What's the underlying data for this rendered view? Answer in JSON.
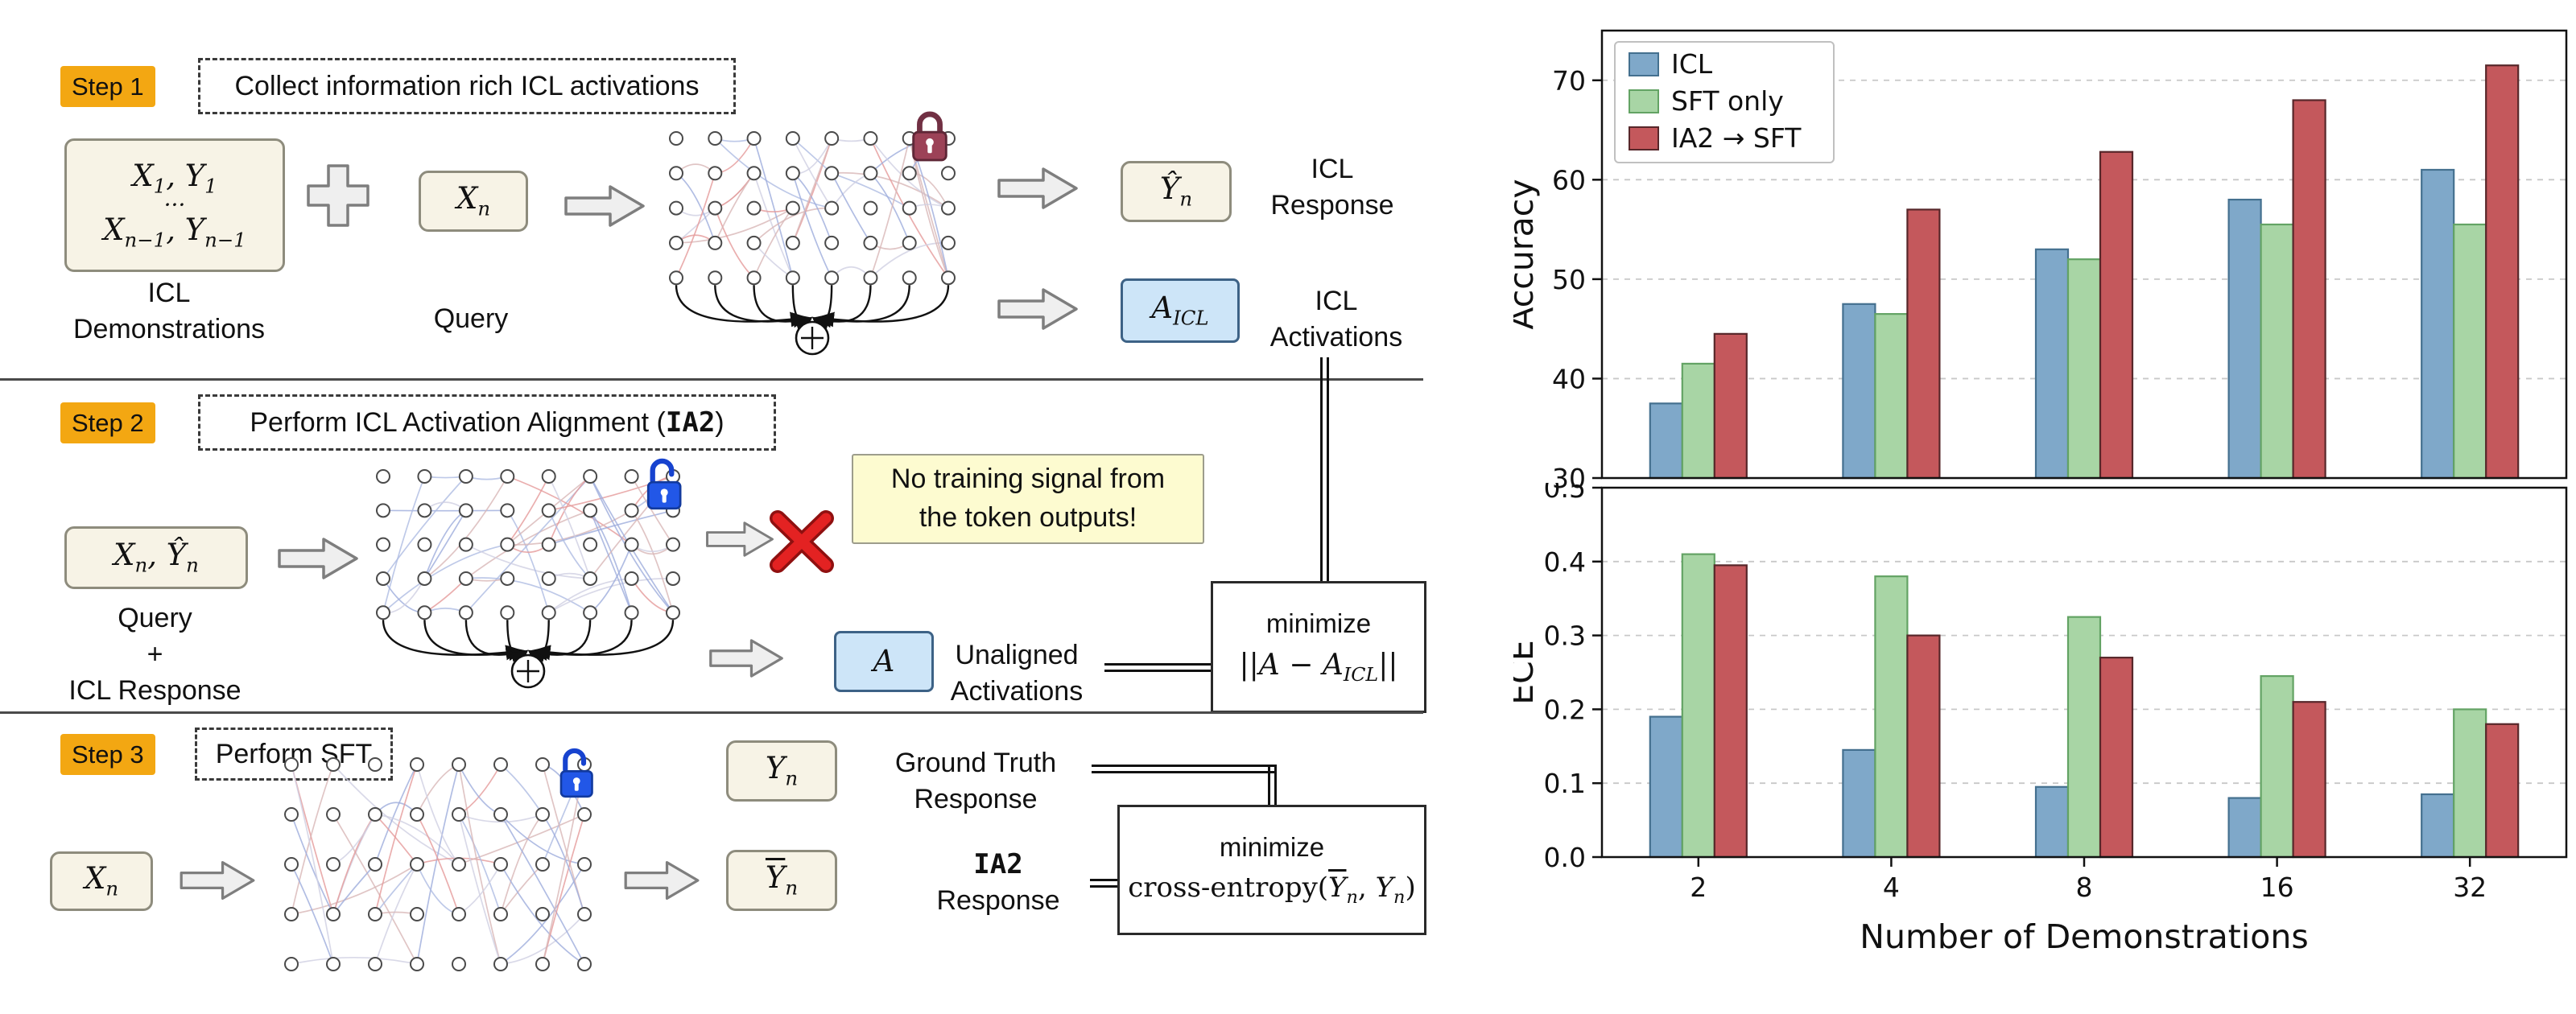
{
  "diagram": {
    "step1": {
      "badge": "Step 1",
      "title": "Collect information rich ICL activations",
      "demos": {
        "line1": [
          [
            "t",
            "X"
          ],
          [
            "s",
            "1"
          ],
          [
            "t",
            ", Y"
          ],
          [
            "s",
            "1"
          ]
        ],
        "dots": "···",
        "line2": [
          [
            "t",
            "X"
          ],
          [
            "s",
            "n−1"
          ],
          [
            "t",
            ", Y"
          ],
          [
            "s",
            "n−1"
          ]
        ],
        "label_line1": "ICL",
        "label_line2": "Demonstrations"
      },
      "query": {
        "value": [
          [
            "t",
            "X"
          ],
          [
            "s",
            "n"
          ]
        ],
        "label": "Query"
      },
      "response": {
        "value": [
          [
            "t",
            "Ŷ"
          ],
          [
            "s",
            "n"
          ]
        ],
        "label_line1": "ICL",
        "label_line2": "Response"
      },
      "activations": {
        "value": [
          [
            "t",
            "A"
          ],
          [
            "s",
            "ICL"
          ]
        ],
        "label_line1": "ICL",
        "label_line2": "Activations"
      }
    },
    "step2": {
      "badge": "Step 2",
      "title_prefix": "Perform ICL Activation Alignment (",
      "title_code": "IA2",
      "title_suffix": ")",
      "input": {
        "value": [
          [
            "t",
            "X"
          ],
          [
            "s",
            "n"
          ],
          [
            "t",
            ", Ŷ"
          ],
          [
            "s",
            "n"
          ]
        ],
        "label_line1": "Query",
        "label_line2": "+",
        "label_line3": "ICL Response"
      },
      "note_line1": "No training signal from",
      "note_line2": "the token outputs!",
      "activations": {
        "value": [
          [
            "t",
            "A"
          ]
        ],
        "label_line1": "Unaligned",
        "label_line2": "Activations"
      },
      "minimize": {
        "title": "minimize",
        "expr": [
          [
            "t",
            "||A − A"
          ],
          [
            "s",
            "ICL"
          ],
          [
            "t",
            "||"
          ]
        ]
      }
    },
    "step3": {
      "badge": "Step 3",
      "title": "Perform SFT",
      "input": {
        "value": [
          [
            "t",
            "X"
          ],
          [
            "s",
            "n"
          ]
        ]
      },
      "output": {
        "value": [
          [
            "b",
            "Y"
          ],
          [
            "s",
            "n"
          ]
        ]
      },
      "truth": {
        "value": [
          [
            "t",
            "Y"
          ],
          [
            "s",
            "n"
          ]
        ],
        "label_line1": "Ground Truth",
        "label_line2": "Response"
      },
      "ia2_response": {
        "code": "IA2",
        "rest": "Response"
      },
      "minimize": {
        "title": "minimize",
        "expr": [
          [
            "r",
            "cross-entropy("
          ],
          [
            "b",
            "Y"
          ],
          [
            "s",
            "n"
          ],
          [
            "r",
            ", "
          ],
          [
            "t",
            "Y"
          ],
          [
            "s",
            "n"
          ],
          [
            "r",
            ")"
          ]
        ]
      }
    }
  },
  "colors": {
    "step_badge_bg": "#f3a712",
    "io_box_bg": "#f7f3e6",
    "activation_box_bg": "#cde5f8",
    "note_bg": "#fdfbd0",
    "lock_closed": "#9c4257",
    "lock_open": "#2257e7",
    "cross_out": "#e32222",
    "icl_bar": "#7fa8c9",
    "sft_bar": "#a8d5a5",
    "ia2_bar": "#c4585c"
  },
  "chart_data": [
    {
      "type": "bar",
      "title": "",
      "ylabel": "Accuracy",
      "xlabel": "",
      "ylim": [
        30,
        75
      ],
      "yticks": [
        {
          "v": 30,
          "label": "30"
        },
        {
          "v": 40,
          "label": "40"
        },
        {
          "v": 50,
          "label": "50"
        },
        {
          "v": 60,
          "label": "60"
        },
        {
          "v": 70,
          "label": "70"
        }
      ],
      "categories": [
        "2",
        "4",
        "8",
        "16",
        "32"
      ],
      "grid": "dashed-horizontal",
      "legend_position": "upper-left",
      "show_x_tick_labels": false,
      "series": [
        {
          "name": "ICL",
          "color": "#7fa8c9",
          "edge": "#44708f",
          "values": [
            37.5,
            47.5,
            53,
            58,
            61
          ]
        },
        {
          "name": "SFT only",
          "color": "#a8d5a5",
          "edge": "#63a364",
          "values": [
            41.5,
            46.5,
            52,
            55.5,
            55.5
          ]
        },
        {
          "name": "IA2 → SFT",
          "color": "#c4585c",
          "edge": "#57272a",
          "values": [
            44.5,
            57,
            62.8,
            68,
            71.5
          ]
        }
      ]
    },
    {
      "type": "bar",
      "title": "",
      "ylabel": "ECE",
      "xlabel": "Number of Demonstrations",
      "ylim": [
        0,
        0.5
      ],
      "yticks": [
        {
          "v": 0,
          "label": "0.0"
        },
        {
          "v": 0.1,
          "label": "0.1"
        },
        {
          "v": 0.2,
          "label": "0.2"
        },
        {
          "v": 0.3,
          "label": "0.3"
        },
        {
          "v": 0.4,
          "label": "0.4"
        },
        {
          "v": 0.5,
          "label": "0.5"
        }
      ],
      "categories": [
        "2",
        "4",
        "8",
        "16",
        "32"
      ],
      "grid": "dashed-horizontal",
      "legend_position": "none",
      "show_x_tick_labels": true,
      "series": [
        {
          "name": "ICL",
          "color": "#7fa8c9",
          "edge": "#44708f",
          "values": [
            0.19,
            0.145,
            0.095,
            0.08,
            0.085
          ]
        },
        {
          "name": "SFT only",
          "color": "#a8d5a5",
          "edge": "#63a364",
          "values": [
            0.41,
            0.38,
            0.325,
            0.245,
            0.2
          ]
        },
        {
          "name": "IA2 → SFT",
          "color": "#c4585c",
          "edge": "#57272a",
          "values": [
            0.395,
            0.3,
            0.27,
            0.21,
            0.18
          ]
        }
      ]
    }
  ]
}
